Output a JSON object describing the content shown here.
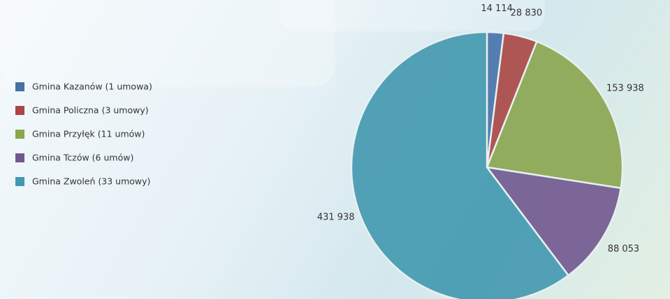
{
  "chart_data": {
    "type": "pie",
    "categories": [
      "Gmina Kazanów (1 umowa)",
      "Gmina Policzna (3 umowy)",
      "Gmina Przyłęk (11 umów)",
      "Gmina Tczów (6 umów)",
      "Gmina Zwoleń (33 umowy)"
    ],
    "values": [
      14114,
      28830,
      153938,
      88053,
      431938
    ],
    "value_labels": [
      "14 114",
      "28 830",
      "153 938",
      "88 053",
      "431 938"
    ],
    "colors": [
      "#4572a7",
      "#aa4643",
      "#89a54e",
      "#71588f",
      "#4198af"
    ],
    "legend": "left"
  }
}
